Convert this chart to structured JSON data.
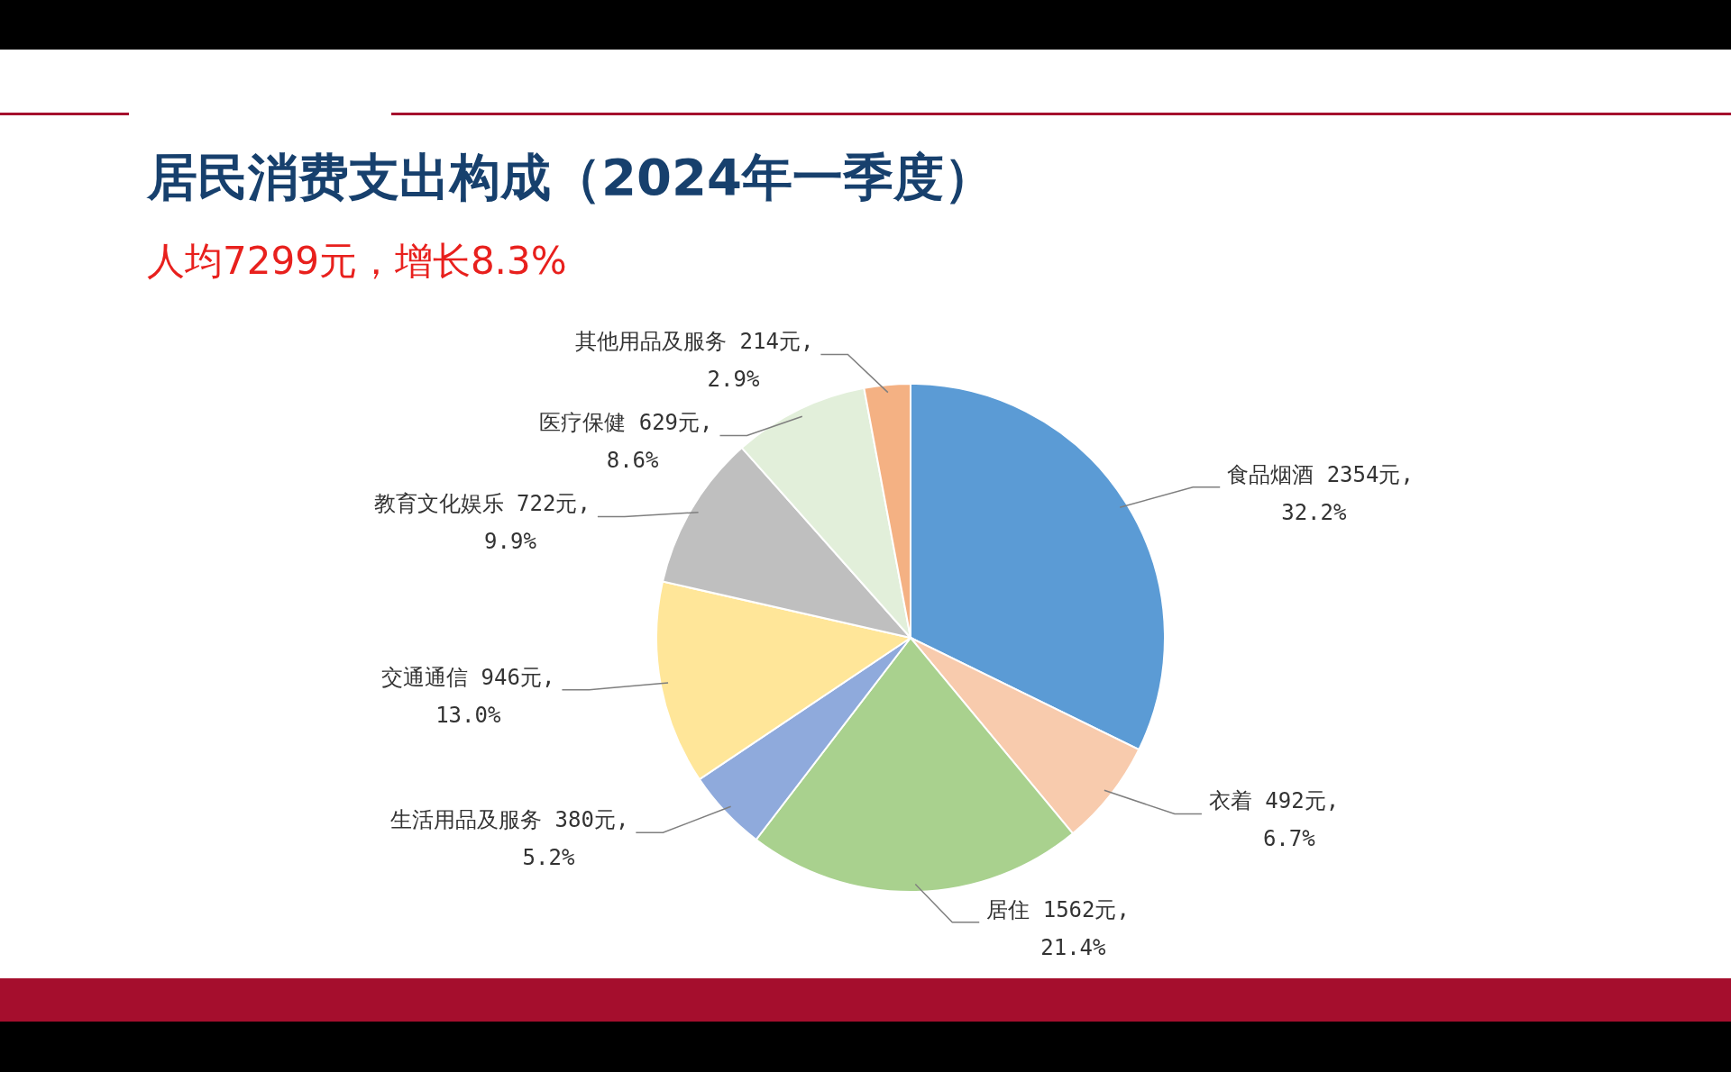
{
  "chart_data": {
    "type": "pie",
    "title": "居民消费支出构成（2024年一季度）",
    "subtitle": "人均7299元，增长8.3%",
    "categories": [
      "食品烟酒",
      "衣着",
      "居住",
      "生活用品及服务",
      "交通通信",
      "教育文化娱乐",
      "医疗保健",
      "其他用品及服务"
    ],
    "values": [
      2354,
      492,
      1562,
      380,
      946,
      722,
      629,
      214
    ],
    "value_labels": [
      "2354元,\n32.2%",
      "492元,\n6.7%",
      "1562元,\n21.4%",
      "380元,\n5.2%",
      "946元,\n13.0%",
      "722元,\n9.9%",
      "629元,\n8.6%",
      "214元,\n2.9%"
    ],
    "colors": [
      "#5b9bd5",
      "#f8cbad",
      "#a9d18e",
      "#8faadc",
      "#ffe699",
      "#bfbfbf",
      "#e2efda",
      "#f4b183"
    ],
    "legend": false
  }
}
